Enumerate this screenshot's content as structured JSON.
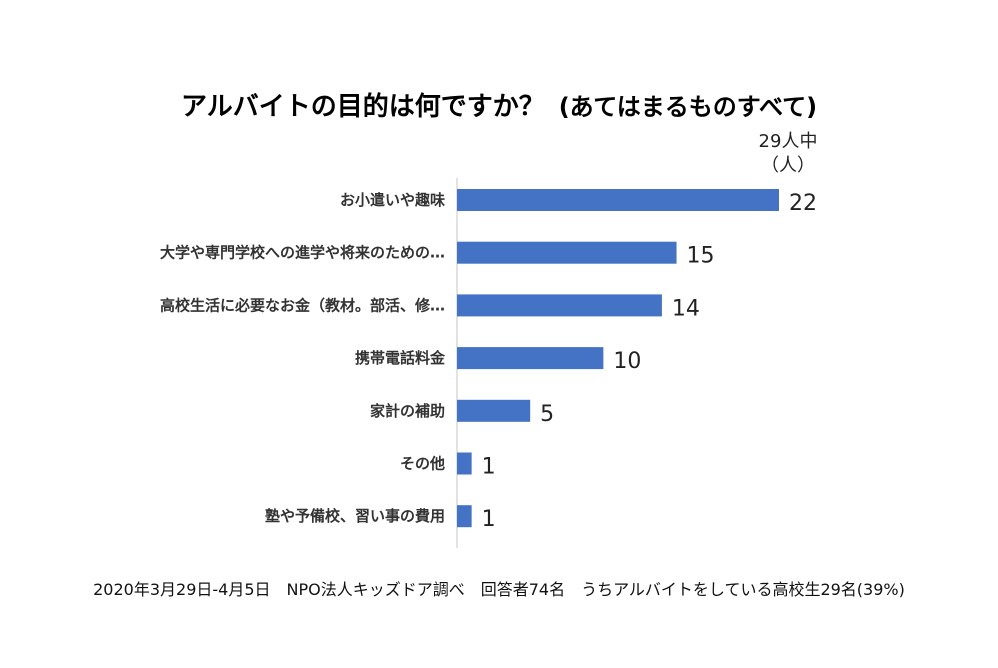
{
  "title": "アルバイトの目的は何ですか？",
  "subtitle": "(あてはまるものすべて)",
  "unit_line1": "29人中",
  "unit_line2": "（人）",
  "footer": "2020年3月29日-4月5日　NPO法人キッズドア調べ　回答者74名　うちアルバイトをしている高校生29名(39%)",
  "colors": {
    "bar": "#4472C4",
    "axis": "#d9d9d9"
  },
  "chart_data": {
    "type": "bar",
    "orientation": "horizontal",
    "categories": [
      "お小遣いや趣味",
      "大学や専門学校への進学や将来のための…",
      "高校生活に必要なお金（教材。部活、修…",
      "携帯電話料金",
      "家計の補助",
      "その他",
      "塾や予備校、習い事の費用"
    ],
    "values": [
      22,
      15,
      14,
      10,
      5,
      1,
      1
    ],
    "xlim": [
      0,
      29
    ]
  }
}
